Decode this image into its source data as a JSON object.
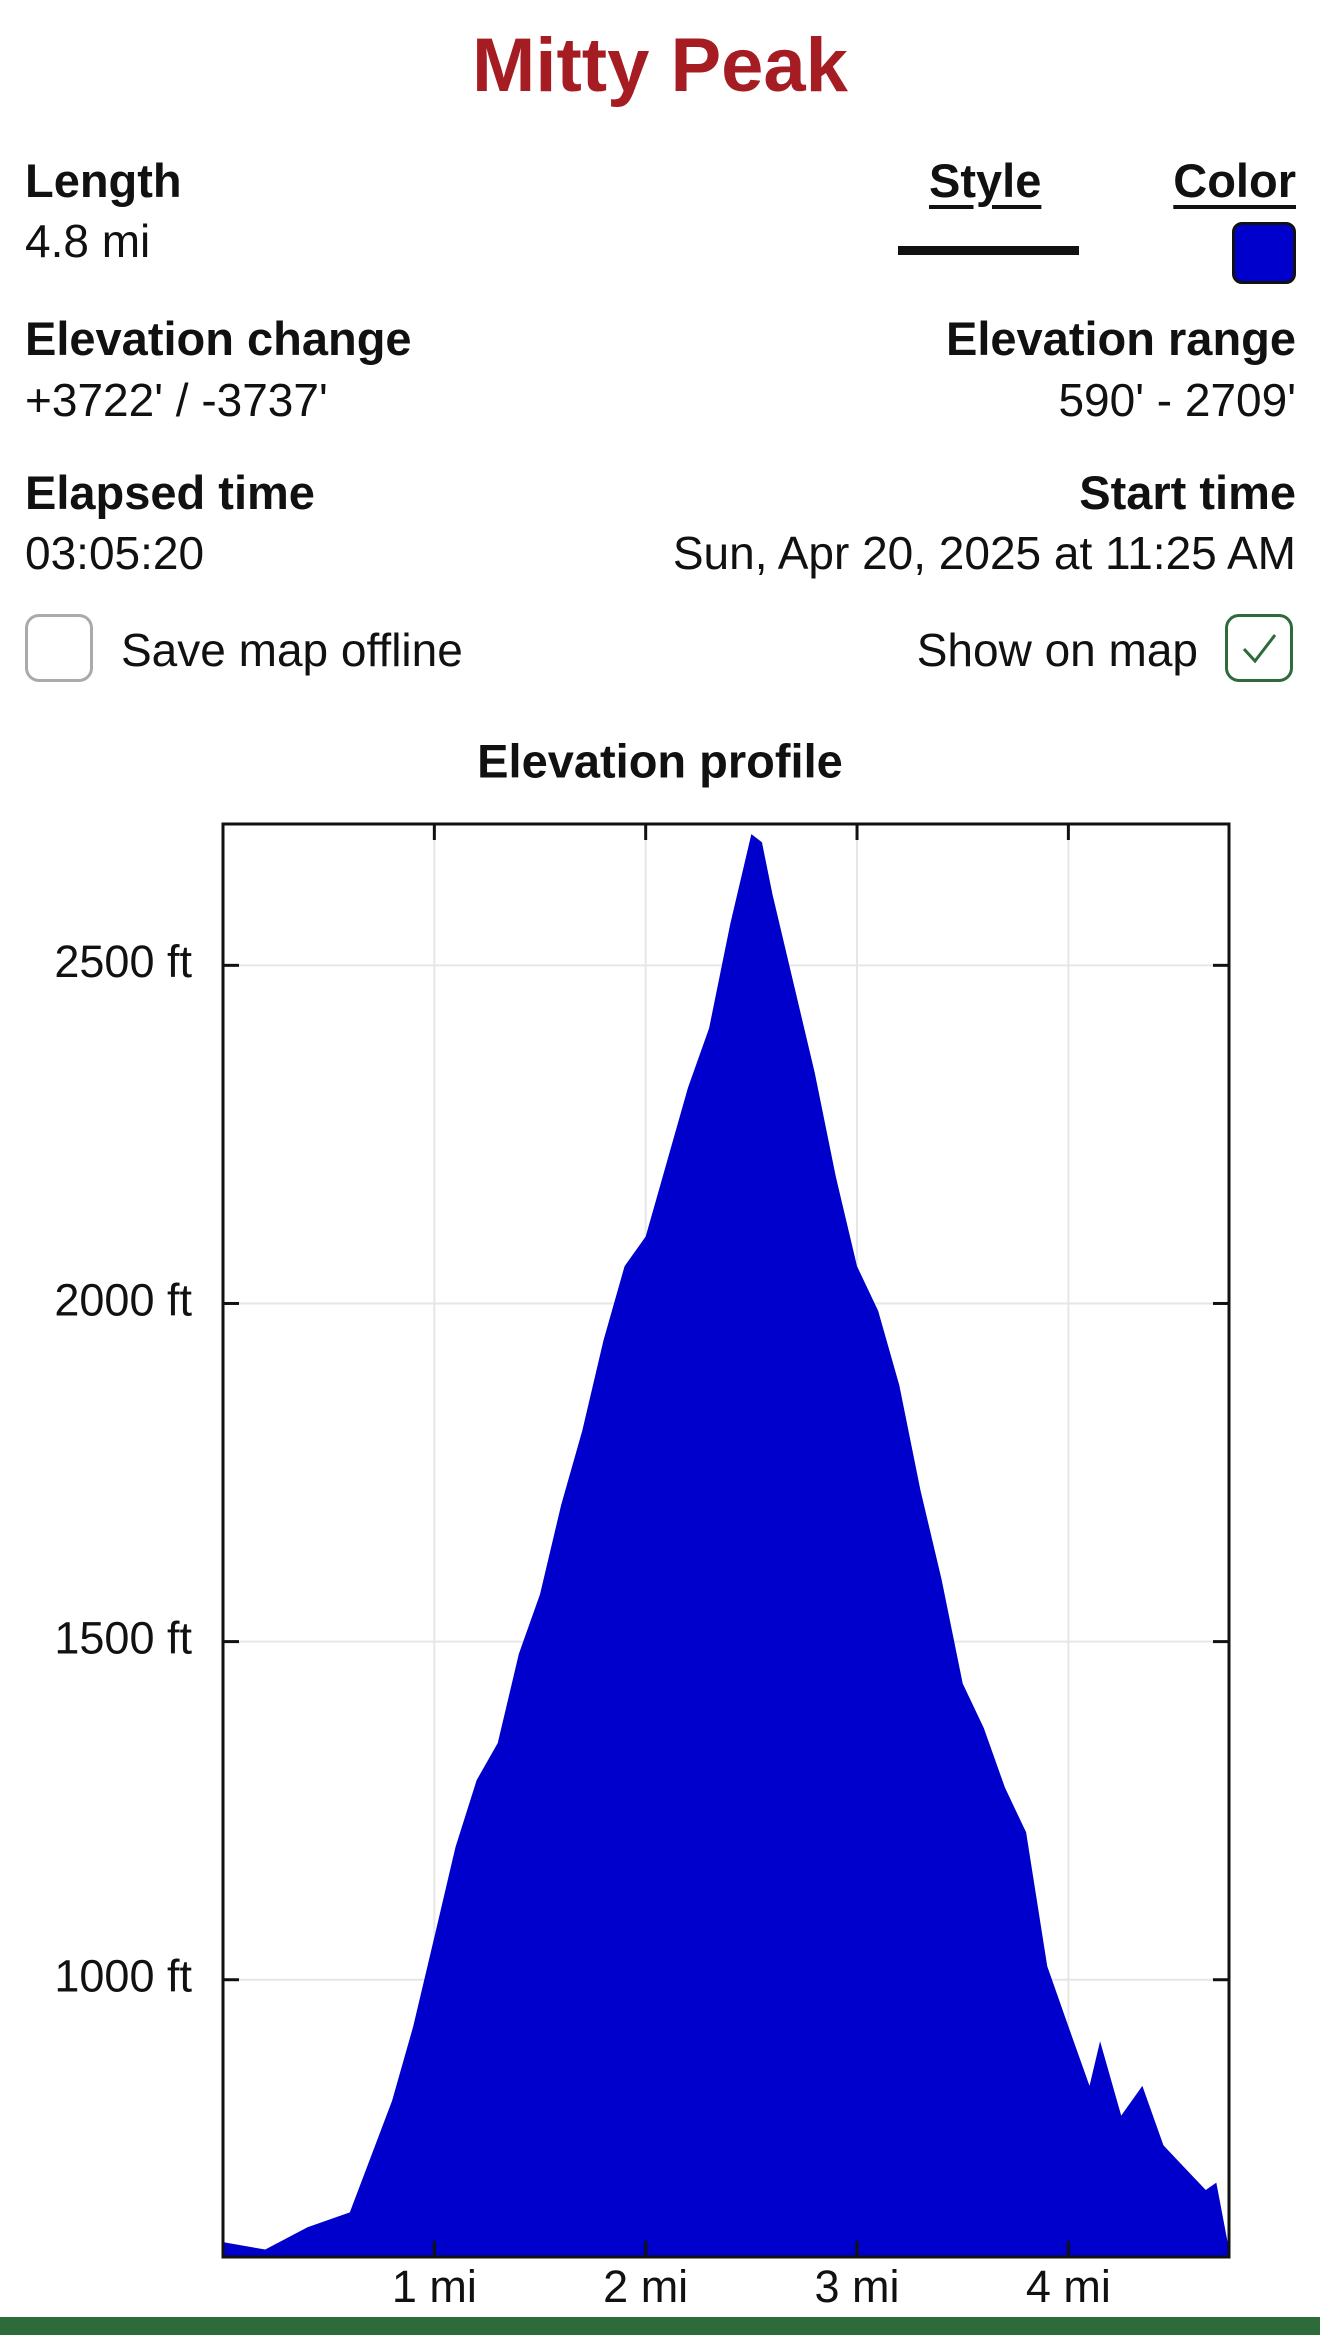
{
  "header": {
    "title": "Mitty Peak"
  },
  "stats": {
    "length": {
      "label": "Length",
      "value": "4.8 mi"
    },
    "style": {
      "label": "Style"
    },
    "color": {
      "label": "Color"
    },
    "elevation_change": {
      "label": "Elevation change",
      "value": "+3722' / -3737'"
    },
    "elevation_range": {
      "label": "Elevation range",
      "value": "590' - 2709'"
    },
    "elapsed_time": {
      "label": "Elapsed time",
      "value": "03:05:20"
    },
    "start_time": {
      "label": "Start time",
      "value": "Sun, Apr 20, 2025 at 11:25 AM"
    }
  },
  "options": {
    "save_offline": {
      "label": "Save map offline",
      "checked": false
    },
    "show_on_map": {
      "label": "Show on map",
      "checked": true
    }
  },
  "chart_data": {
    "type": "area",
    "title": "Elevation profile",
    "color": "#0000cc",
    "grid": true,
    "x": [
      0,
      0.2,
      0.4,
      0.6,
      0.8,
      0.9,
      1.0,
      1.1,
      1.2,
      1.3,
      1.4,
      1.5,
      1.6,
      1.7,
      1.8,
      1.9,
      2.0,
      2.1,
      2.2,
      2.3,
      2.4,
      2.5,
      2.55,
      2.6,
      2.7,
      2.8,
      2.9,
      3.0,
      3.1,
      3.2,
      3.3,
      3.4,
      3.5,
      3.6,
      3.7,
      3.8,
      3.9,
      4.0,
      4.1,
      4.15,
      4.25,
      4.35,
      4.45,
      4.55,
      4.65,
      4.7,
      4.76
    ],
    "values": [
      612,
      601,
      634,
      656,
      821,
      931,
      1063,
      1196,
      1295,
      1350,
      1482,
      1570,
      1702,
      1812,
      1945,
      2055,
      2099,
      2209,
      2319,
      2407,
      2561,
      2694,
      2682,
      2605,
      2473,
      2341,
      2187,
      2055,
      1989,
      1879,
      1724,
      1592,
      1438,
      1372,
      1284,
      1218,
      1020,
      931,
      843,
      909,
      799,
      843,
      755,
      722,
      689,
      700,
      601
    ],
    "xlim": [
      0,
      4.76
    ],
    "ylim": [
      590,
      2709
    ],
    "xticks": [
      {
        "value": 1,
        "label": "1 mi"
      },
      {
        "value": 2,
        "label": "2 mi"
      },
      {
        "value": 3,
        "label": "3 mi"
      },
      {
        "value": 4,
        "label": "4 mi"
      }
    ],
    "yticks": [
      {
        "value": 1000,
        "label": "1000 ft"
      },
      {
        "value": 1500,
        "label": "1500 ft"
      },
      {
        "value": 2000,
        "label": "2000 ft"
      },
      {
        "value": 2500,
        "label": "2500 ft"
      }
    ]
  }
}
